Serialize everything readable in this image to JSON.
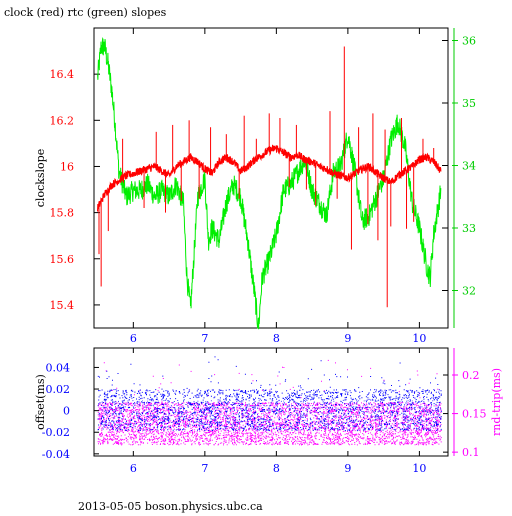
{
  "title": "clock (red) rtc (green) slopes",
  "footer": "2013-05-05  boson.physics.ubc.ca",
  "colors": {
    "clock": "#ff0000",
    "rtc": "#00ee00",
    "offset": "#0000ff",
    "roundtrip": "#ff00ff",
    "axis_left_top": "#ff0000",
    "axis_right_top": "#00cc00",
    "axis_left_bottom": "#0000ff",
    "axis_right_bottom": "#ff00ff",
    "x_ticks": "#0000ff"
  },
  "chart_data": [
    {
      "type": "line",
      "panel": "top",
      "ylabel": "clockslope",
      "xlim": [
        5.45,
        10.4
      ],
      "ylim_left": [
        15.3,
        16.6
      ],
      "ylim_right": [
        31.4,
        36.2
      ],
      "x_ticks": [
        "6",
        "7",
        "8",
        "9",
        "10"
      ],
      "y_ticks_left": [
        "15.4",
        "15.6",
        "15.8",
        "16",
        "16.2",
        "16.4"
      ],
      "y_ticks_right": [
        "32",
        "33",
        "34",
        "35",
        "36"
      ],
      "series": [
        {
          "axis": "left",
          "x": [
            5.5,
            5.6,
            5.7,
            5.8,
            5.9,
            6.0,
            6.1,
            6.2,
            6.3,
            6.4,
            6.5,
            6.6,
            6.7,
            6.8,
            6.9,
            7.0,
            7.1,
            7.2,
            7.3,
            7.4,
            7.5,
            7.6,
            7.7,
            7.8,
            7.9,
            8.0,
            8.1,
            8.2,
            8.3,
            8.4,
            8.5,
            8.6,
            8.7,
            8.8,
            8.9,
            9.0,
            9.1,
            9.2,
            9.3,
            9.4,
            9.5,
            9.6,
            9.7,
            9.8,
            9.9,
            10.0,
            10.1,
            10.2,
            10.3
          ],
          "values": [
            15.82,
            15.88,
            15.92,
            15.94,
            15.96,
            15.97,
            15.98,
            15.99,
            16.0,
            15.98,
            15.96,
            16.0,
            16.02,
            16.04,
            16.02,
            15.99,
            15.97,
            16.02,
            16.04,
            16.02,
            15.98,
            16.0,
            16.03,
            16.05,
            16.07,
            16.08,
            16.06,
            16.04,
            16.05,
            16.03,
            16.02,
            16.0,
            15.99,
            15.97,
            15.96,
            15.95,
            15.97,
            15.99,
            16.0,
            15.97,
            15.95,
            15.93,
            15.96,
            15.98,
            16.0,
            16.03,
            16.04,
            16.02,
            15.98
          ]
        },
        {
          "axis": "right",
          "x": [
            5.5,
            5.55,
            5.6,
            5.65,
            5.7,
            5.75,
            5.8,
            5.9,
            6.0,
            6.1,
            6.2,
            6.3,
            6.4,
            6.5,
            6.6,
            6.7,
            6.75,
            6.8,
            6.9,
            7.0,
            7.05,
            7.1,
            7.2,
            7.3,
            7.4,
            7.5,
            7.6,
            7.7,
            7.75,
            7.8,
            7.9,
            8.0,
            8.1,
            8.2,
            8.3,
            8.4,
            8.5,
            8.6,
            8.7,
            8.8,
            8.9,
            9.0,
            9.1,
            9.2,
            9.3,
            9.4,
            9.5,
            9.6,
            9.7,
            9.8,
            9.9,
            10.0,
            10.1,
            10.15,
            10.2,
            10.3
          ],
          "values": [
            35.4,
            35.9,
            35.9,
            35.6,
            35.2,
            34.6,
            33.9,
            33.5,
            33.6,
            33.6,
            33.7,
            33.5,
            33.6,
            33.5,
            33.7,
            33.4,
            32.2,
            31.7,
            33.5,
            33.8,
            32.8,
            33.0,
            32.8,
            33.4,
            33.7,
            33.5,
            32.8,
            31.9,
            31.4,
            32.2,
            32.5,
            32.9,
            33.6,
            33.7,
            33.9,
            34.1,
            33.6,
            33.4,
            33.2,
            33.9,
            34.0,
            34.5,
            33.9,
            33.1,
            33.2,
            33.5,
            33.8,
            34.4,
            34.7,
            34.3,
            33.4,
            33.0,
            32.4,
            32.2,
            32.9,
            33.6
          ]
        }
      ],
      "spikes": [
        {
          "x": 5.52,
          "value": 15.62
        },
        {
          "x": 5.55,
          "value": 15.48
        },
        {
          "x": 5.65,
          "value": 15.72
        },
        {
          "x": 5.85,
          "value": 16.12
        },
        {
          "x": 6.15,
          "value": 15.82
        },
        {
          "x": 6.32,
          "value": 16.15
        },
        {
          "x": 6.45,
          "value": 15.8
        },
        {
          "x": 6.55,
          "value": 16.18
        },
        {
          "x": 6.67,
          "value": 15.85
        },
        {
          "x": 6.78,
          "value": 16.2
        },
        {
          "x": 6.92,
          "value": 15.86
        },
        {
          "x": 7.08,
          "value": 16.17
        },
        {
          "x": 7.3,
          "value": 16.14
        },
        {
          "x": 7.48,
          "value": 15.86
        },
        {
          "x": 7.55,
          "value": 16.22
        },
        {
          "x": 7.72,
          "value": 16.12
        },
        {
          "x": 7.9,
          "value": 16.23
        },
        {
          "x": 8.05,
          "value": 16.21
        },
        {
          "x": 8.18,
          "value": 15.91
        },
        {
          "x": 8.28,
          "value": 16.18
        },
        {
          "x": 8.42,
          "value": 15.9
        },
        {
          "x": 8.55,
          "value": 15.83
        },
        {
          "x": 8.75,
          "value": 16.24
        },
        {
          "x": 8.85,
          "value": 15.86
        },
        {
          "x": 8.95,
          "value": 16.52
        },
        {
          "x": 9.05,
          "value": 15.64
        },
        {
          "x": 9.15,
          "value": 16.17
        },
        {
          "x": 9.28,
          "value": 15.75
        },
        {
          "x": 9.35,
          "value": 16.23
        },
        {
          "x": 9.42,
          "value": 15.68
        },
        {
          "x": 9.52,
          "value": 16.16
        },
        {
          "x": 9.55,
          "value": 15.39
        },
        {
          "x": 9.6,
          "value": 15.74
        },
        {
          "x": 9.75,
          "value": 16.21
        },
        {
          "x": 9.82,
          "value": 15.73
        },
        {
          "x": 9.92,
          "value": 15.76
        },
        {
          "x": 10.05,
          "value": 16.12
        },
        {
          "x": 10.2,
          "value": 16.08
        }
      ]
    },
    {
      "type": "scatter",
      "panel": "bottom",
      "ylabel_left": "offset(ms)",
      "ylabel_right": "rnd-trip(ms)",
      "xlim": [
        5.45,
        10.4
      ],
      "ylim_left": [
        -0.042,
        0.058
      ],
      "ylim_right": [
        0.095,
        0.235
      ],
      "x_ticks": [
        "6",
        "7",
        "8",
        "9",
        "10"
      ],
      "y_ticks_left": [
        "-0.04",
        "-0.02",
        "0",
        "0.02",
        "0.04"
      ],
      "y_ticks_right": [
        "0.1",
        "0.15",
        "0.2"
      ],
      "series": [
        {
          "axis": "left",
          "x_range": [
            5.5,
            10.3
          ],
          "center": 0.0,
          "band_low": -0.018,
          "band_high": 0.02,
          "outlier_max": 0.052
        },
        {
          "axis": "right",
          "x_range": [
            5.5,
            10.3
          ],
          "center": 0.135,
          "band_low": 0.11,
          "band_high": 0.165,
          "outlier_max": 0.22
        }
      ]
    }
  ]
}
